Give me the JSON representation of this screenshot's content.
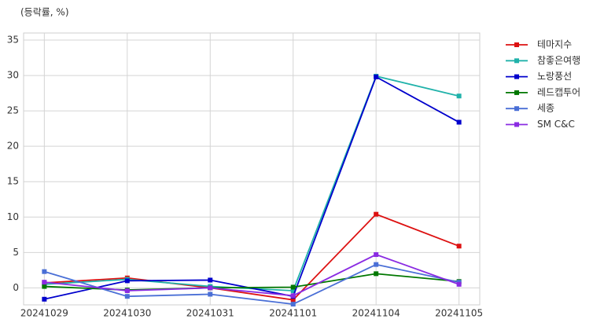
{
  "chart_data": {
    "type": "line",
    "y_label": "(등락률, %)",
    "categories": [
      "20241029",
      "20241030",
      "20241031",
      "20241101",
      "20241104",
      "20241105"
    ],
    "series": [
      {
        "name": "테마지수",
        "color": "#dd1111",
        "values": [
          0.7,
          1.4,
          0.0,
          -1.7,
          10.4,
          5.9
        ]
      },
      {
        "name": "참좋은여행",
        "color": "#20b2aa",
        "values": [
          0.5,
          1.2,
          0.2,
          -0.4,
          29.9,
          27.1
        ]
      },
      {
        "name": "노랑풍선",
        "color": "#0000cc",
        "values": [
          -1.6,
          1.0,
          1.1,
          -1.2,
          29.8,
          23.4
        ]
      },
      {
        "name": "레드캡투어",
        "color": "#007700",
        "values": [
          0.2,
          -0.3,
          0.0,
          0.1,
          2.0,
          0.9
        ]
      },
      {
        "name": "세종",
        "color": "#4a6fd6",
        "values": [
          2.3,
          -1.2,
          -0.9,
          -2.3,
          3.3,
          0.8
        ]
      },
      {
        "name": "SM C&C",
        "color": "#8a2be2",
        "values": [
          0.8,
          -0.4,
          0.0,
          -1.1,
          4.7,
          0.5
        ]
      }
    ],
    "ylim": [
      -2.4,
      36
    ],
    "yticks": [
      0,
      5,
      10,
      15,
      20,
      25,
      30,
      35
    ],
    "grid": true,
    "legend": "outside-right"
  }
}
